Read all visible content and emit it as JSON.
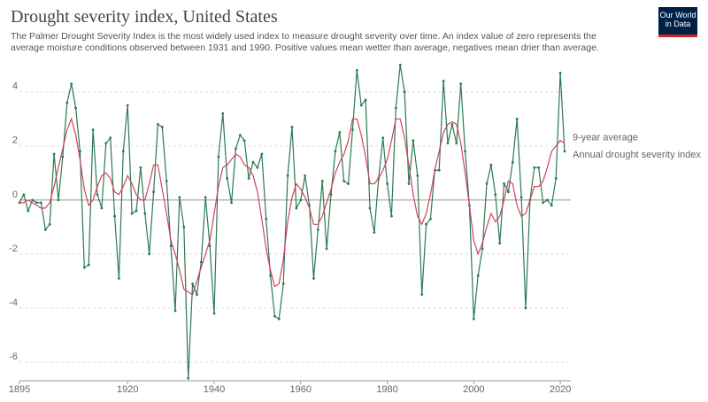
{
  "chart_data": {
    "type": "line",
    "title": "Drought severity index, United States",
    "subtitle": "The Palmer Drought Severity Index is the most widely used index to measure drought severity over time. An index value of zero represents the average moisture conditions observed between 1931 and 1990. Positive values mean wetter than average, negatives mean drier than average.",
    "logo": [
      "Our World",
      "in Data"
    ],
    "x": [
      1895,
      1896,
      1897,
      1898,
      1899,
      1900,
      1901,
      1902,
      1903,
      1904,
      1905,
      1906,
      1907,
      1908,
      1909,
      1910,
      1911,
      1912,
      1913,
      1914,
      1915,
      1916,
      1917,
      1918,
      1919,
      1920,
      1921,
      1922,
      1923,
      1924,
      1925,
      1926,
      1927,
      1928,
      1929,
      1930,
      1931,
      1932,
      1933,
      1934,
      1935,
      1936,
      1937,
      1938,
      1939,
      1940,
      1941,
      1942,
      1943,
      1944,
      1945,
      1946,
      1947,
      1948,
      1949,
      1950,
      1951,
      1952,
      1953,
      1954,
      1955,
      1956,
      1957,
      1958,
      1959,
      1960,
      1961,
      1962,
      1963,
      1964,
      1965,
      1966,
      1967,
      1968,
      1969,
      1970,
      1971,
      1972,
      1973,
      1974,
      1975,
      1976,
      1977,
      1978,
      1979,
      1980,
      1981,
      1982,
      1983,
      1984,
      1985,
      1986,
      1987,
      1988,
      1989,
      1990,
      1991,
      1992,
      1993,
      1994,
      1995,
      1996,
      1997,
      1998,
      1999,
      2000,
      2001,
      2002,
      2003,
      2004,
      2005,
      2006,
      2007,
      2008,
      2009,
      2010,
      2011,
      2012,
      2013,
      2014,
      2015,
      2016,
      2017,
      2018,
      2019,
      2020,
      2021
    ],
    "series": [
      {
        "name": "9-year average",
        "color": "#d6405a",
        "dots": false,
        "values": [
          -0.1,
          -0.1,
          0.0,
          -0.1,
          -0.2,
          -0.3,
          -0.3,
          -0.1,
          0.5,
          1.2,
          1.9,
          2.6,
          3.0,
          2.4,
          1.5,
          0.4,
          -0.2,
          0.0,
          0.5,
          0.9,
          1.0,
          0.8,
          0.3,
          0.2,
          0.5,
          0.9,
          0.6,
          0.2,
          0.0,
          0.0,
          0.6,
          1.3,
          1.3,
          0.4,
          -0.5,
          -1.5,
          -2.0,
          -2.6,
          -3.3,
          -3.4,
          -3.5,
          -3.0,
          -2.5,
          -2.0,
          -1.5,
          -0.5,
          0.5,
          1.2,
          1.3,
          1.5,
          1.7,
          1.6,
          1.3,
          1.2,
          0.9,
          0.3,
          -0.7,
          -1.8,
          -2.6,
          -3.2,
          -3.1,
          -2.2,
          -0.8,
          0.1,
          0.6,
          0.4,
          0.1,
          -0.3,
          -0.9,
          -0.9,
          -0.6,
          -0.1,
          0.4,
          1.0,
          1.4,
          1.7,
          2.2,
          3.0,
          3.0,
          2.4,
          1.6,
          0.6,
          0.6,
          0.8,
          1.1,
          1.5,
          2.2,
          3.0,
          3.0,
          2.3,
          1.3,
          0.2,
          -0.6,
          -0.9,
          -0.5,
          0.2,
          1.1,
          1.8,
          2.5,
          2.8,
          2.9,
          2.8,
          2.1,
          1.0,
          -0.2,
          -1.5,
          -2.0,
          -1.6,
          -1.0,
          -0.5,
          -0.8,
          -0.6,
          0.0,
          0.7,
          0.6,
          -0.2,
          -0.6,
          -0.5,
          0.0,
          0.5,
          0.5,
          0.7,
          1.2,
          1.8,
          2.0,
          2.2,
          2.1
        ]
      },
      {
        "name": "Annual drought severity index",
        "color": "#2a7a56",
        "dots": true,
        "values": [
          -0.1,
          0.2,
          -0.4,
          0.0,
          -0.1,
          -0.1,
          -1.1,
          -0.9,
          1.7,
          0.0,
          1.6,
          3.6,
          4.3,
          3.4,
          1.8,
          -2.5,
          -2.4,
          2.6,
          0.2,
          -0.3,
          2.1,
          2.3,
          -0.6,
          -2.9,
          1.8,
          3.5,
          -0.5,
          -0.4,
          1.2,
          -0.5,
          -2.0,
          0.3,
          2.8,
          2.7,
          0.7,
          -1.7,
          -4.1,
          0.1,
          -1.0,
          -6.6,
          -3.1,
          -3.5,
          -2.3,
          0.1,
          -1.7,
          -4.2,
          1.6,
          3.2,
          0.8,
          -0.1,
          1.9,
          2.4,
          2.2,
          0.8,
          1.4,
          1.2,
          1.7,
          -0.7,
          -2.8,
          -4.3,
          -4.4,
          -3.1,
          0.9,
          2.7,
          -0.3,
          0.0,
          0.9,
          -0.2,
          -2.9,
          -1.1,
          0.7,
          -1.8,
          0.2,
          1.8,
          2.5,
          0.7,
          0.6,
          2.6,
          4.8,
          3.5,
          3.7,
          -0.3,
          -1.2,
          0.8,
          2.3,
          0.6,
          -0.6,
          3.4,
          5.0,
          4.0,
          0.6,
          2.2,
          0.9,
          -3.5,
          -0.9,
          -0.7,
          1.1,
          1.1,
          4.4,
          2.1,
          2.8,
          2.1,
          4.3,
          1.8,
          -0.2,
          -4.4,
          -2.8,
          -1.8,
          0.6,
          1.3,
          0.2,
          -1.6,
          0.6,
          0.3,
          1.4,
          3.0,
          0.1,
          -4.0,
          0.0,
          1.2,
          1.2,
          -0.1,
          0.0,
          -0.2,
          0.8,
          4.7,
          1.8
        ]
      }
    ],
    "xlim": [
      1895,
      2021
    ],
    "xticks": [
      {
        "value": 1895,
        "label": "1895"
      },
      1920,
      1940,
      1960,
      1980,
      2000,
      2020
    ],
    "ylim": [
      -7,
      5.5
    ],
    "yticks": [
      -6,
      -4,
      -2,
      0,
      2,
      4
    ],
    "grid": true
  }
}
